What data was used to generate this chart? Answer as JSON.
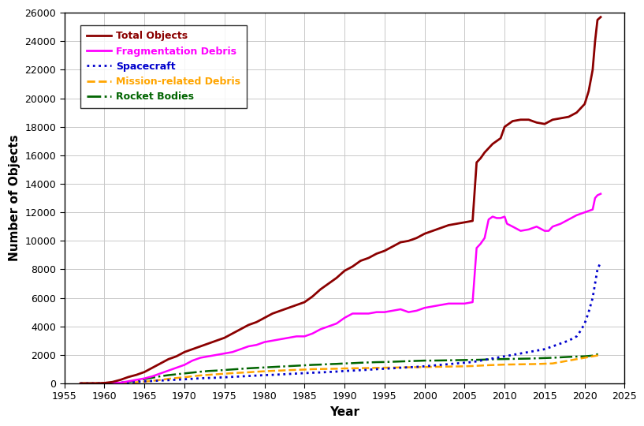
{
  "xlabel": "Year",
  "ylabel": "Number of Objects",
  "xlim": [
    1955,
    2025
  ],
  "ylim": [
    0,
    26000
  ],
  "yticks": [
    0,
    2000,
    4000,
    6000,
    8000,
    10000,
    12000,
    14000,
    16000,
    18000,
    20000,
    22000,
    24000,
    26000
  ],
  "xticks": [
    1955,
    1960,
    1965,
    1970,
    1975,
    1980,
    1985,
    1990,
    1995,
    2000,
    2005,
    2010,
    2015,
    2020,
    2025
  ],
  "colors": {
    "total": "#8B0000",
    "fragmentation": "#FF00FF",
    "spacecraft": "#0000CD",
    "mission": "#FFA500",
    "rocket": "#006400"
  },
  "background_color": "#ffffff",
  "grid_color": "#c8c8c8",
  "total_objects": {
    "years": [
      1957,
      1958,
      1959,
      1960,
      1961,
      1962,
      1963,
      1964,
      1965,
      1966,
      1967,
      1968,
      1969,
      1970,
      1971,
      1972,
      1973,
      1974,
      1975,
      1976,
      1977,
      1978,
      1979,
      1980,
      1981,
      1982,
      1983,
      1984,
      1985,
      1986,
      1987,
      1988,
      1989,
      1990,
      1991,
      1992,
      1993,
      1994,
      1995,
      1996,
      1997,
      1998,
      1999,
      2000,
      2001,
      2002,
      2003,
      2004,
      2005,
      2006,
      2006.5,
      2007,
      2007.5,
      2008,
      2008.5,
      2009,
      2009.5,
      2010,
      2010.5,
      2011,
      2012,
      2013,
      2014,
      2015,
      2016,
      2017,
      2018,
      2019,
      2019.5,
      2020,
      2020.5,
      2021,
      2021.3,
      2021.6,
      2022
    ],
    "values": [
      2,
      5,
      10,
      30,
      100,
      250,
      450,
      600,
      800,
      1100,
      1400,
      1700,
      1900,
      2200,
      2400,
      2600,
      2800,
      3000,
      3200,
      3500,
      3800,
      4100,
      4300,
      4600,
      4900,
      5100,
      5300,
      5500,
      5700,
      6100,
      6600,
      7000,
      7400,
      7900,
      8200,
      8600,
      8800,
      9100,
      9300,
      9600,
      9900,
      10000,
      10200,
      10500,
      10700,
      10900,
      11100,
      11200,
      11300,
      11400,
      15500,
      15800,
      16200,
      16500,
      16800,
      17000,
      17200,
      18000,
      18200,
      18400,
      18500,
      18500,
      18300,
      18200,
      18500,
      18600,
      18700,
      19000,
      19300,
      19600,
      20500,
      22000,
      24000,
      25500,
      25700
    ]
  },
  "fragmentation_debris": {
    "years": [
      1961,
      1962,
      1963,
      1964,
      1965,
      1966,
      1967,
      1968,
      1969,
      1970,
      1971,
      1972,
      1973,
      1974,
      1975,
      1976,
      1977,
      1978,
      1979,
      1980,
      1981,
      1982,
      1983,
      1984,
      1985,
      1986,
      1987,
      1988,
      1989,
      1990,
      1991,
      1992,
      1993,
      1994,
      1995,
      1996,
      1997,
      1998,
      1999,
      2000,
      2001,
      2002,
      2003,
      2004,
      2005,
      2006,
      2006.5,
      2007,
      2007.5,
      2008,
      2008.5,
      2009,
      2009.5,
      2010,
      2010.3,
      2011,
      2012,
      2013,
      2014,
      2015,
      2015.5,
      2016,
      2017,
      2018,
      2019,
      2020,
      2021,
      2021.3,
      2021.6,
      2022
    ],
    "values": [
      10,
      50,
      150,
      250,
      350,
      500,
      700,
      900,
      1100,
      1300,
      1600,
      1800,
      1900,
      2000,
      2100,
      2200,
      2400,
      2600,
      2700,
      2900,
      3000,
      3100,
      3200,
      3300,
      3300,
      3500,
      3800,
      4000,
      4200,
      4600,
      4900,
      4900,
      4900,
      5000,
      5000,
      5100,
      5200,
      5000,
      5100,
      5300,
      5400,
      5500,
      5600,
      5600,
      5600,
      5700,
      9500,
      9800,
      10200,
      11500,
      11700,
      11600,
      11600,
      11700,
      11200,
      11000,
      10700,
      10800,
      11000,
      10700,
      10700,
      11000,
      11200,
      11500,
      11800,
      12000,
      12200,
      13000,
      13200,
      13300
    ]
  },
  "spacecraft": {
    "years": [
      1957,
      1958,
      1959,
      1960,
      1961,
      1962,
      1963,
      1964,
      1965,
      1966,
      1967,
      1968,
      1969,
      1970,
      1971,
      1972,
      1973,
      1974,
      1975,
      1976,
      1977,
      1978,
      1979,
      1980,
      1981,
      1982,
      1983,
      1984,
      1985,
      1986,
      1987,
      1988,
      1989,
      1990,
      1991,
      1992,
      1993,
      1994,
      1995,
      1996,
      1997,
      1998,
      1999,
      2000,
      2001,
      2002,
      2003,
      2004,
      2005,
      2006,
      2007,
      2008,
      2009,
      2010,
      2011,
      2012,
      2013,
      2014,
      2015,
      2016,
      2017,
      2018,
      2019,
      2019.5,
      2020,
      2020.5,
      2021,
      2021.3,
      2021.6,
      2022
    ],
    "values": [
      2,
      3,
      5,
      15,
      30,
      50,
      80,
      110,
      140,
      170,
      200,
      230,
      260,
      290,
      320,
      360,
      380,
      400,
      430,
      460,
      490,
      520,
      550,
      580,
      600,
      630,
      660,
      690,
      720,
      750,
      770,
      800,
      830,
      870,
      900,
      930,
      960,
      1000,
      1030,
      1060,
      1100,
      1130,
      1160,
      1200,
      1250,
      1300,
      1350,
      1400,
      1450,
      1500,
      1600,
      1700,
      1800,
      1900,
      2000,
      2100,
      2200,
      2300,
      2400,
      2600,
      2800,
      3000,
      3300,
      3700,
      4200,
      5000,
      6000,
      7000,
      8000,
      8500
    ]
  },
  "mission_debris": {
    "years": [
      1957,
      1958,
      1959,
      1960,
      1961,
      1962,
      1963,
      1964,
      1965,
      1966,
      1967,
      1968,
      1969,
      1970,
      1971,
      1972,
      1973,
      1974,
      1975,
      1976,
      1977,
      1978,
      1979,
      1980,
      1981,
      1982,
      1983,
      1984,
      1985,
      1986,
      1987,
      1988,
      1989,
      1990,
      1991,
      1992,
      1993,
      1994,
      1995,
      1996,
      1997,
      1998,
      1999,
      2000,
      2001,
      2002,
      2003,
      2004,
      2005,
      2006,
      2007,
      2008,
      2009,
      2010,
      2011,
      2012,
      2013,
      2014,
      2015,
      2016,
      2017,
      2018,
      2019,
      2020,
      2021,
      2022
    ],
    "values": [
      0,
      2,
      5,
      10,
      20,
      40,
      60,
      80,
      120,
      180,
      250,
      320,
      380,
      430,
      500,
      560,
      600,
      640,
      680,
      720,
      750,
      780,
      820,
      850,
      880,
      900,
      930,
      950,
      970,
      1000,
      1010,
      1020,
      1030,
      1050,
      1060,
      1070,
      1080,
      1090,
      1100,
      1110,
      1120,
      1130,
      1140,
      1150,
      1160,
      1170,
      1180,
      1190,
      1200,
      1220,
      1250,
      1280,
      1300,
      1320,
      1330,
      1340,
      1350,
      1360,
      1380,
      1400,
      1500,
      1600,
      1700,
      1800,
      1900,
      2000
    ]
  },
  "rocket_bodies": {
    "years": [
      1957,
      1958,
      1959,
      1960,
      1961,
      1962,
      1963,
      1964,
      1965,
      1966,
      1967,
      1968,
      1969,
      1970,
      1971,
      1972,
      1973,
      1974,
      1975,
      1976,
      1977,
      1978,
      1979,
      1980,
      1981,
      1982,
      1983,
      1984,
      1985,
      1986,
      1987,
      1988,
      1989,
      1990,
      1991,
      1992,
      1993,
      1994,
      1995,
      1996,
      1997,
      1998,
      1999,
      2000,
      2001,
      2002,
      2003,
      2004,
      2005,
      2006,
      2007,
      2008,
      2009,
      2010,
      2011,
      2012,
      2013,
      2014,
      2015,
      2016,
      2017,
      2018,
      2019,
      2020,
      2021,
      2022
    ],
    "values": [
      0,
      2,
      5,
      10,
      20,
      50,
      100,
      200,
      300,
      400,
      500,
      580,
      640,
      700,
      760,
      820,
      870,
      900,
      940,
      980,
      1020,
      1060,
      1090,
      1120,
      1150,
      1180,
      1210,
      1240,
      1270,
      1300,
      1320,
      1350,
      1370,
      1400,
      1420,
      1450,
      1470,
      1490,
      1500,
      1520,
      1540,
      1560,
      1580,
      1600,
      1600,
      1610,
      1620,
      1630,
      1640,
      1650,
      1660,
      1680,
      1700,
      1710,
      1720,
      1730,
      1740,
      1760,
      1780,
      1800,
      1830,
      1860,
      1880,
      1900,
      1950,
      2100
    ]
  }
}
